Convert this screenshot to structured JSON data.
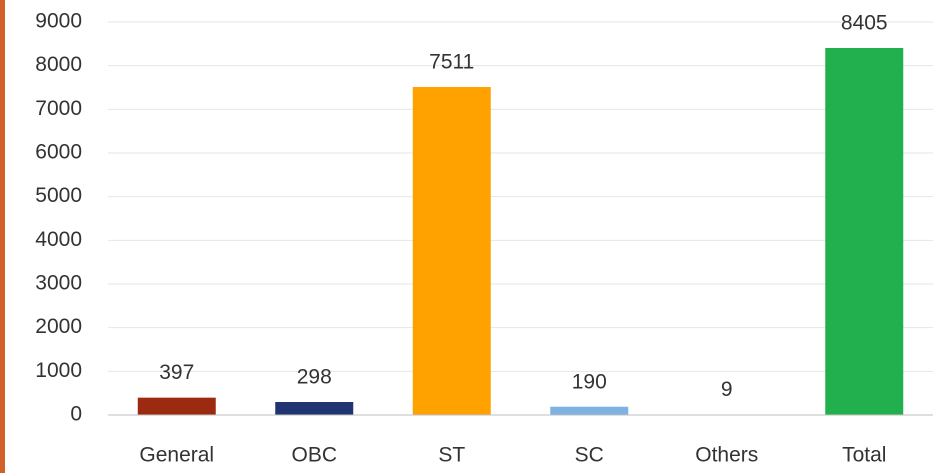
{
  "chart_data": {
    "type": "bar",
    "categories": [
      "General",
      "OBC",
      "ST",
      "SC",
      "Others",
      "Total"
    ],
    "values": [
      397,
      298,
      7511,
      190,
      9,
      8405
    ],
    "colors": [
      "#9b2a10",
      "#1f3470",
      "#ffa200",
      "#7eb2e0",
      "#a6a6a6",
      "#22b04e"
    ],
    "ylim": [
      0,
      9000
    ],
    "yticks": [
      0,
      1000,
      2000,
      3000,
      4000,
      5000,
      6000,
      7000,
      8000,
      9000
    ],
    "grid": true
  }
}
